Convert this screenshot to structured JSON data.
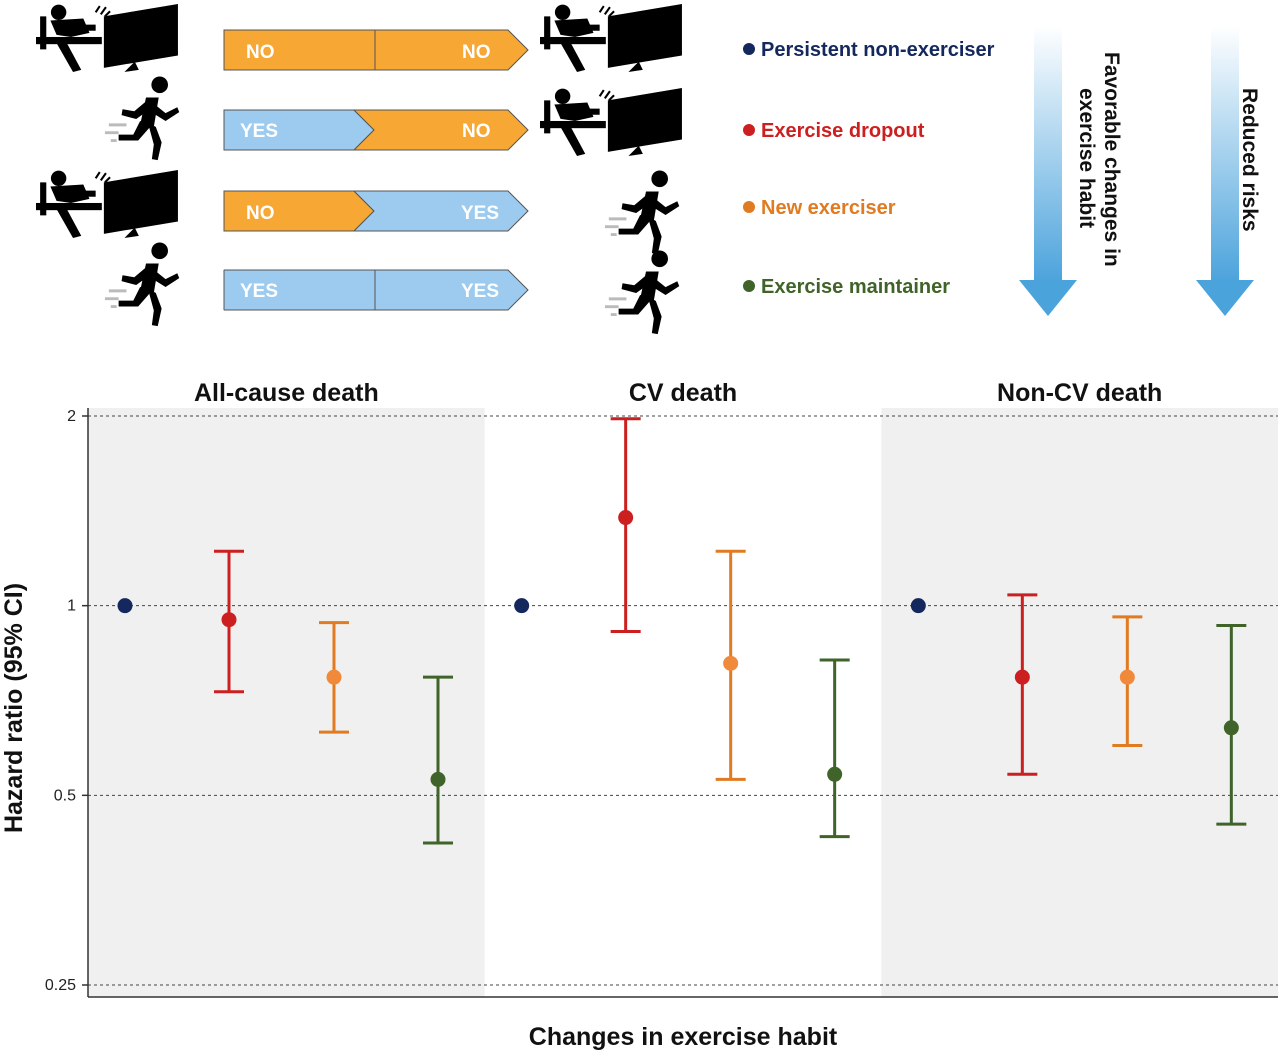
{
  "top_rows": [
    {
      "left": "NO",
      "right": "NO",
      "left_color": "#f7a733",
      "right_color": "#f7a733",
      "from_icon": "sedentary-person-icon",
      "to_icon": "sedentary-person-icon"
    },
    {
      "left": "YES",
      "right": "NO",
      "left_color": "#9dcbef",
      "right_color": "#f7a733",
      "from_icon": "running-person-icon",
      "to_icon": "sedentary-person-icon"
    },
    {
      "left": "NO",
      "right": "YES",
      "left_color": "#f7a733",
      "right_color": "#9dcbef",
      "from_icon": "sedentary-person-icon",
      "to_icon": "running-person-icon"
    },
    {
      "left": "YES",
      "right": "YES",
      "left_color": "#9dcbef",
      "right_color": "#9dcbef",
      "from_icon": "running-person-icon",
      "to_icon": "running-person-icon"
    }
  ],
  "legend": [
    {
      "label": "Persistent non-exerciser",
      "color": "#14285e"
    },
    {
      "label": "Exercise dropout",
      "color": "#cc1f1f"
    },
    {
      "label": "New exerciser",
      "color": "#e07b22"
    },
    {
      "label": "Exercise maintainer",
      "color": "#3f6328"
    }
  ],
  "side_arrows": {
    "favorable": [
      "Favorable changes in",
      "exercise habit"
    ],
    "reduced": "Reduced risks",
    "arrow_color": "#4ba3dc"
  },
  "chart_data": {
    "type": "scatter",
    "scale": "log2",
    "ylabel": "Hazard ratio (95% CI)",
    "xlabel": "Changes in exercise habit",
    "ylim": [
      0.25,
      2
    ],
    "yticks": [
      {
        "value": 0.25,
        "label": "0.25"
      },
      {
        "value": 0.5,
        "label": "0.5"
      },
      {
        "value": 1,
        "label": "1"
      },
      {
        "value": 2,
        "label": "2"
      }
    ],
    "reference_line": 1,
    "grid": "dashed horizontal at ticks",
    "panels": [
      {
        "title": "All-cause death",
        "shaded": true,
        "points": [
          {
            "group": "Persistent non-exerciser",
            "hr": 1.0
          },
          {
            "group": "Exercise dropout",
            "hr": 0.95,
            "lo": 0.73,
            "hi": 1.22
          },
          {
            "group": "New exerciser",
            "hr": 0.77,
            "lo": 0.63,
            "hi": 0.94
          },
          {
            "group": "Exercise maintainer",
            "hr": 0.53,
            "lo": 0.42,
            "hi": 0.77
          }
        ]
      },
      {
        "title": "CV death",
        "shaded": false,
        "points": [
          {
            "group": "Persistent non-exerciser",
            "hr": 1.0
          },
          {
            "group": "Exercise dropout",
            "hr": 1.38,
            "lo": 0.91,
            "hi": 1.98
          },
          {
            "group": "New exerciser",
            "hr": 0.81,
            "lo": 0.53,
            "hi": 1.22
          },
          {
            "group": "Exercise maintainer",
            "hr": 0.54,
            "lo": 0.43,
            "hi": 0.82
          }
        ]
      },
      {
        "title": "Non-CV death",
        "shaded": true,
        "points": [
          {
            "group": "Persistent non-exerciser",
            "hr": 1.0
          },
          {
            "group": "Exercise dropout",
            "hr": 0.77,
            "lo": 0.54,
            "hi": 1.04
          },
          {
            "group": "New exerciser",
            "hr": 0.77,
            "lo": 0.6,
            "hi": 0.96
          },
          {
            "group": "Exercise maintainer",
            "hr": 0.64,
            "lo": 0.45,
            "hi": 0.93
          }
        ]
      }
    ]
  }
}
